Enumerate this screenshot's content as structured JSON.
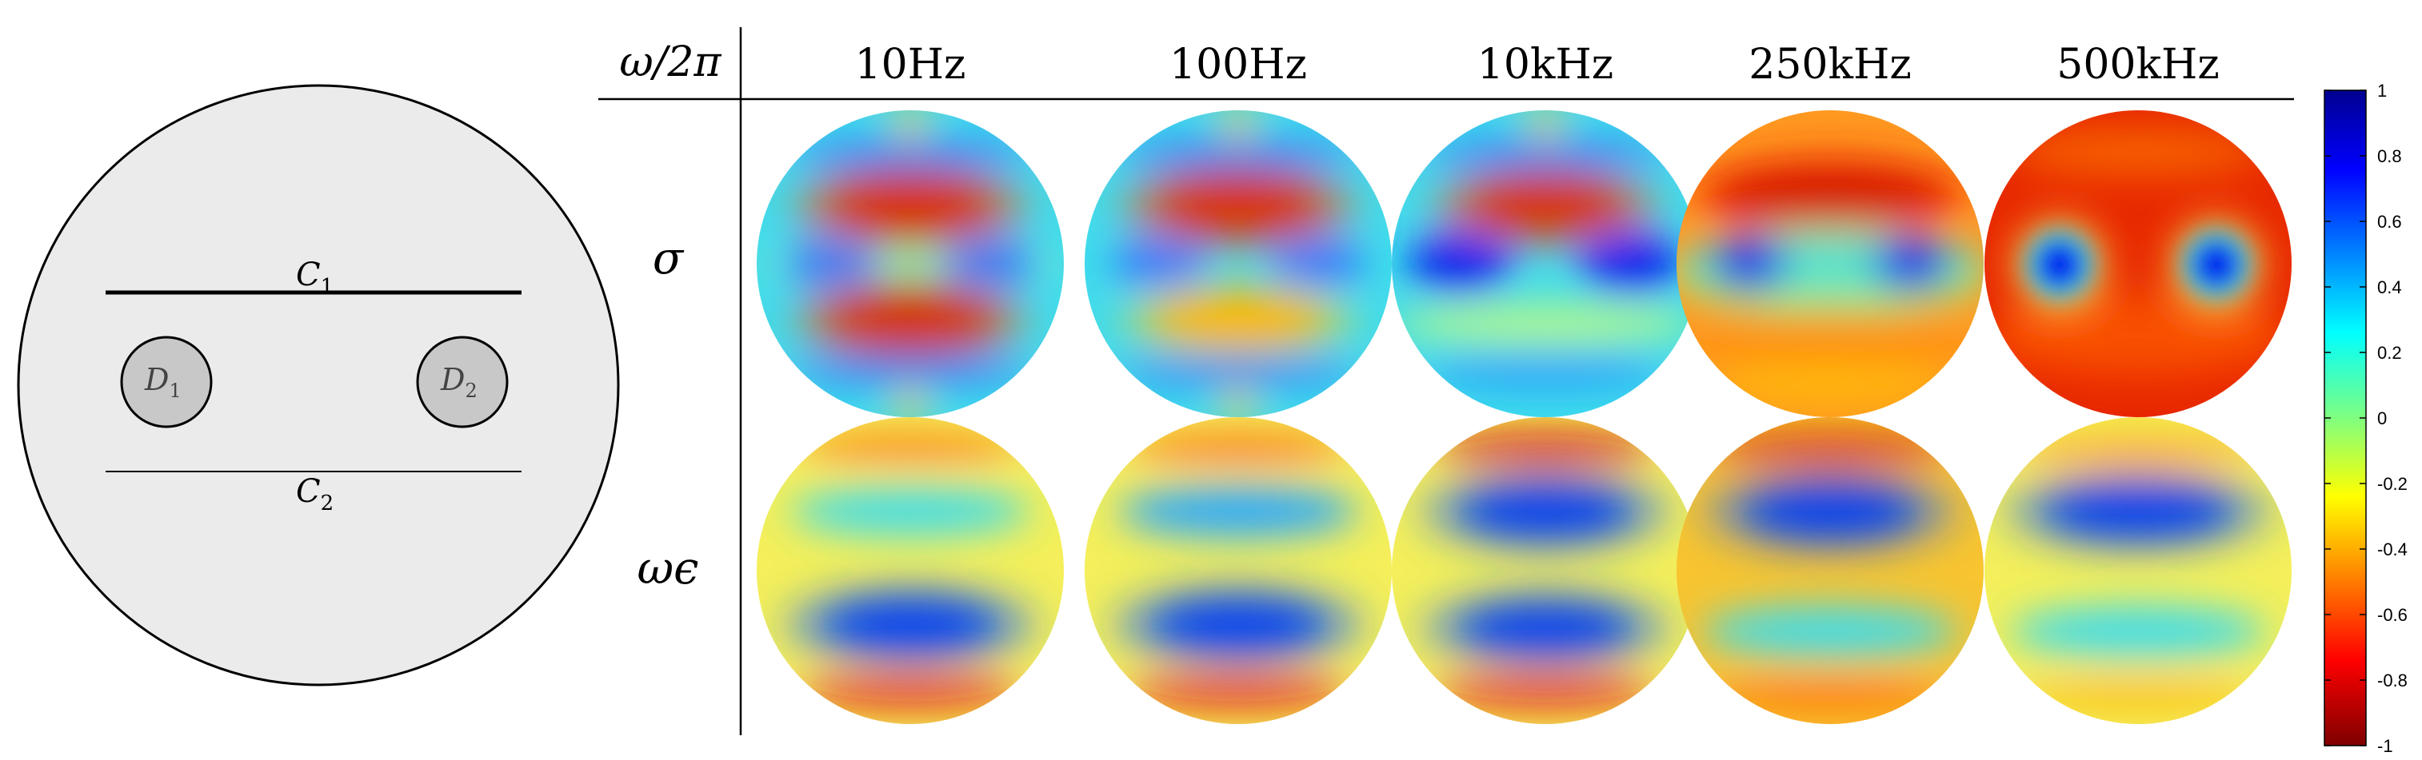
{
  "schematic": {
    "labels": {
      "c1_main": "C",
      "c1_sub": "1",
      "c2_main": "C",
      "c2_sub": "2",
      "d1_main": "D",
      "d1_sub": "1",
      "d2_main": "D",
      "d2_sub": "2"
    }
  },
  "table": {
    "header_label": "ω/2π",
    "columns": [
      "10Hz",
      "100Hz",
      "10kHz",
      "250kHz",
      "500kHz"
    ],
    "rows": [
      "σ",
      "ωϵ"
    ]
  },
  "colorbar": {
    "ticks": [
      "1",
      "0.8",
      "0.6",
      "0.4",
      "0.2",
      "0",
      "-0.2",
      "-0.4",
      "-0.6",
      "-0.8",
      "-1"
    ],
    "min": -1,
    "max": 1,
    "colormap": "jet"
  },
  "colors": {
    "disk_fill": "#ebebeb",
    "inclusion_fill": "#c8c8c8",
    "line": "#000000",
    "jet_background": "#40dcec"
  }
}
